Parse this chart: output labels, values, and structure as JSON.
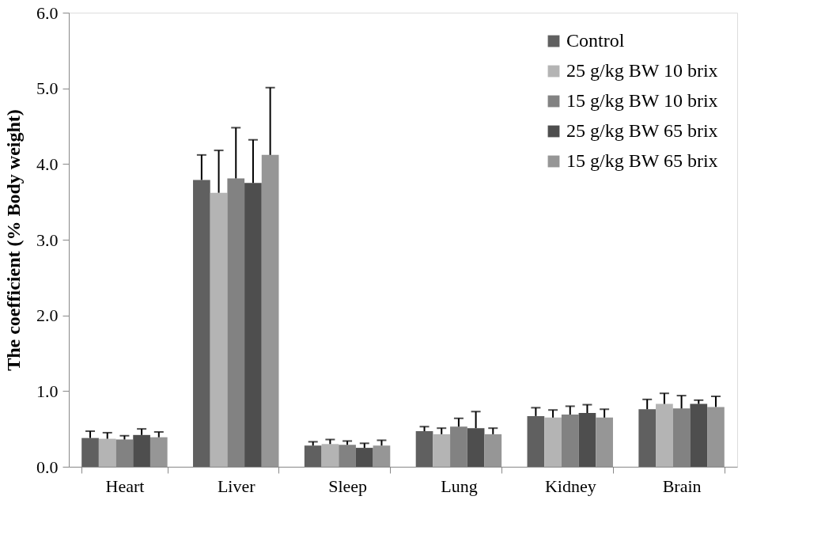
{
  "chart_data": {
    "type": "bar",
    "ylabel": "The coefficient (% Body weight)",
    "categories": [
      "Heart",
      "Liver",
      "Sleep",
      "Lung",
      "Kidney",
      "Brain"
    ],
    "series": [
      {
        "name": "Control",
        "color": "#606060",
        "values": [
          0.38,
          3.79,
          0.28,
          0.47,
          0.67,
          0.76
        ],
        "errors": [
          [
            0.38,
            0.47
          ],
          [
            3.79,
            4.12
          ],
          [
            0.28,
            0.33
          ],
          [
            0.47,
            0.53
          ],
          [
            0.67,
            0.78
          ],
          [
            0.76,
            0.89
          ]
        ]
      },
      {
        "name": "25 g/kg BW 10 brix",
        "color": "#b4b4b4",
        "values": [
          0.37,
          3.62,
          0.3,
          0.43,
          0.65,
          0.83
        ],
        "errors": [
          [
            0.37,
            0.45
          ],
          [
            3.62,
            4.18
          ],
          [
            0.3,
            0.36
          ],
          [
            0.43,
            0.51
          ],
          [
            0.65,
            0.75
          ],
          [
            0.83,
            0.97
          ]
        ]
      },
      {
        "name": "15 g/kg BW 10 brix",
        "color": "#828282",
        "values": [
          0.36,
          3.81,
          0.29,
          0.53,
          0.69,
          0.77
        ],
        "errors": [
          [
            0.36,
            0.41
          ],
          [
            3.81,
            4.48
          ],
          [
            0.29,
            0.34
          ],
          [
            0.53,
            0.64
          ],
          [
            0.69,
            0.8
          ],
          [
            0.77,
            0.94
          ]
        ]
      },
      {
        "name": "25 g/kg BW 65 brix",
        "color": "#4e4e4e",
        "values": [
          0.42,
          3.75,
          0.25,
          0.51,
          0.71,
          0.83
        ],
        "errors": [
          [
            0.42,
            0.5
          ],
          [
            3.75,
            4.32
          ],
          [
            0.25,
            0.31
          ],
          [
            0.51,
            0.73
          ],
          [
            0.71,
            0.82
          ],
          [
            0.83,
            0.88
          ]
        ]
      },
      {
        "name": "15 g/kg BW 65 brix",
        "color": "#969696",
        "values": [
          0.39,
          4.12,
          0.28,
          0.43,
          0.65,
          0.79
        ],
        "errors": [
          [
            0.39,
            0.46
          ],
          [
            4.12,
            5.01
          ],
          [
            0.28,
            0.35
          ],
          [
            0.43,
            0.51
          ],
          [
            0.65,
            0.76
          ],
          [
            0.79,
            0.93
          ]
        ]
      }
    ],
    "ylim": [
      0,
      6
    ],
    "yticks": [
      {
        "value": 0,
        "label": "0.0"
      },
      {
        "value": 1,
        "label": "1.0"
      },
      {
        "value": 2,
        "label": "2.0"
      },
      {
        "value": 3,
        "label": "3.0"
      },
      {
        "value": 4,
        "label": "4.0"
      },
      {
        "value": 5,
        "label": "5.0"
      },
      {
        "value": 6,
        "label": "6.0"
      }
    ],
    "grid": false,
    "legend": "top right"
  }
}
